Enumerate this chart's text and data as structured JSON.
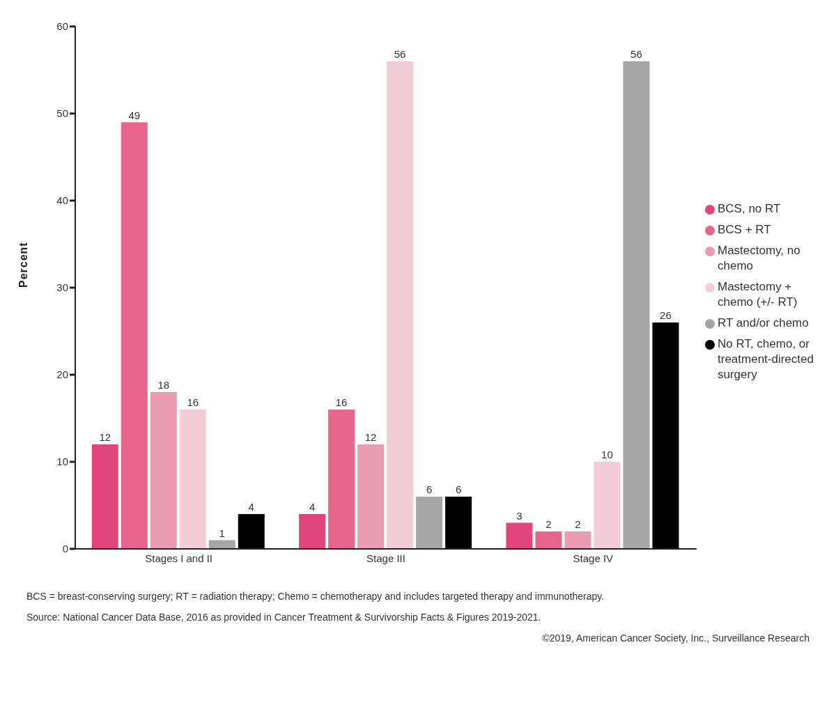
{
  "chart_data": {
    "type": "bar",
    "categories": [
      "Stages I and II",
      "Stage III",
      "Stage IV"
    ],
    "ylabel": "Percent",
    "ylim": [
      0,
      60
    ],
    "yticks": [
      0,
      10,
      20,
      30,
      40,
      50,
      60
    ],
    "series": [
      {
        "name": "BCS, no RT",
        "color": "#e0457b",
        "values": [
          12,
          4,
          3
        ]
      },
      {
        "name": "BCS + RT",
        "color": "#e8658c",
        "values": [
          49,
          16,
          2
        ]
      },
      {
        "name": "Mastectomy, no chemo",
        "color": "#eb9cb2",
        "values": [
          18,
          12,
          2
        ]
      },
      {
        "name": "Mastectomy + chemo (+/- RT)",
        "color": "#f2cdd7",
        "values": [
          16,
          56,
          10
        ]
      },
      {
        "name": "RT and/or chemo",
        "color": "#a6a6a6",
        "values": [
          1,
          6,
          56
        ]
      },
      {
        "name": "No RT, chemo, or treatment-directed surgery",
        "color": "#000000",
        "values": [
          4,
          6,
          26
        ]
      }
    ],
    "data_labels": true,
    "grid": false,
    "legend": "right",
    "annotations": [
      "BCS = breast-conserving surgery;  RT = radiation therapy; Chemo = chemotherapy and includes targeted therapy and immunotherapy.",
      "Source: National Cancer Data Base, 2016 as provided in Cancer Treatment & Survivorship Facts & Figures 2019-2021.",
      "©2019, American Cancer Society, Inc., Surveillance Research"
    ]
  }
}
